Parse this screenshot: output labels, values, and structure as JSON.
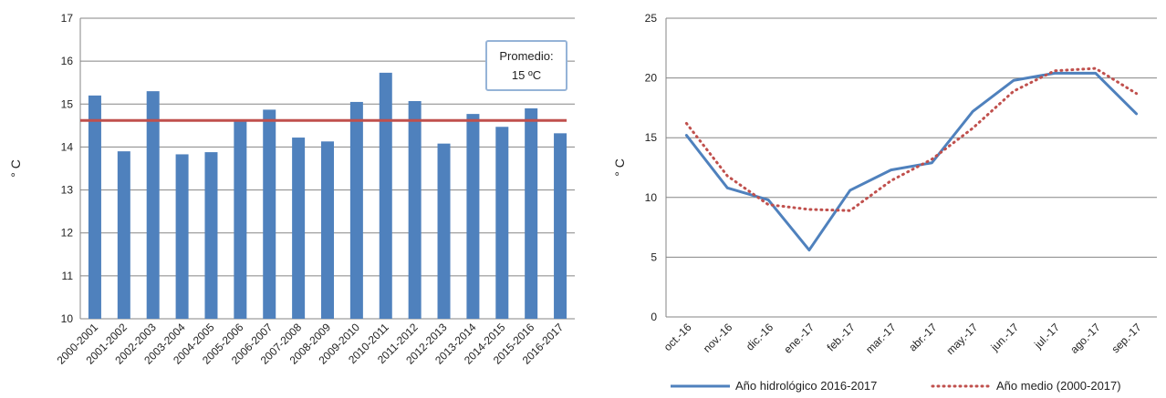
{
  "chart_data": [
    {
      "type": "bar",
      "ylabel": "° C",
      "ylim": [
        10,
        17
      ],
      "yticks": [
        10,
        11,
        12,
        13,
        14,
        15,
        16,
        17
      ],
      "grid": true,
      "categories": [
        "2000-2001",
        "2001-2002",
        "2002-2003",
        "2003-2004",
        "2004-2005",
        "2005-2006",
        "2006-2007",
        "2007-2008",
        "2008-2009",
        "2009-2010",
        "2010-2011",
        "2011-2012",
        "2012-2013",
        "2013-2014",
        "2014-2015",
        "2015-2016",
        "2016-2017"
      ],
      "values": [
        15.2,
        13.9,
        15.3,
        13.83,
        13.88,
        14.6,
        14.87,
        14.22,
        14.13,
        15.05,
        15.73,
        15.07,
        14.08,
        14.77,
        14.47,
        14.9,
        14.32
      ],
      "bar_color": "#4F81BD",
      "reference_line": {
        "value": 14.62,
        "color": "#C0504D"
      },
      "annotation": {
        "line1": "Promedio:",
        "line2": "15 ºC",
        "position": "top-right"
      }
    },
    {
      "type": "line",
      "ylabel": "° C",
      "ylim": [
        0,
        25
      ],
      "yticks": [
        0,
        5,
        10,
        15,
        20,
        25
      ],
      "grid": true,
      "categories": [
        "oct.-16",
        "nov.-16",
        "dic.-16",
        "ene.-17",
        "feb.-17",
        "mar.-17",
        "abr.-17",
        "may.-17",
        "jun.-17",
        "jul.-17",
        "ago.-17",
        "sep.-17"
      ],
      "series": [
        {
          "name": "Año hidrológico 2016-2017",
          "values": [
            15.2,
            10.8,
            9.8,
            5.6,
            10.6,
            12.3,
            12.9,
            17.2,
            19.8,
            20.4,
            20.4,
            17.0
          ],
          "color": "#4F81BD",
          "style": "solid"
        },
        {
          "name": "Año medio (2000-2017)",
          "values": [
            16.2,
            11.8,
            9.4,
            9.0,
            8.9,
            11.4,
            13.2,
            15.8,
            18.9,
            20.6,
            20.8,
            18.7
          ],
          "color": "#C0504D",
          "style": "dotted"
        }
      ],
      "legend": "bottom"
    }
  ]
}
